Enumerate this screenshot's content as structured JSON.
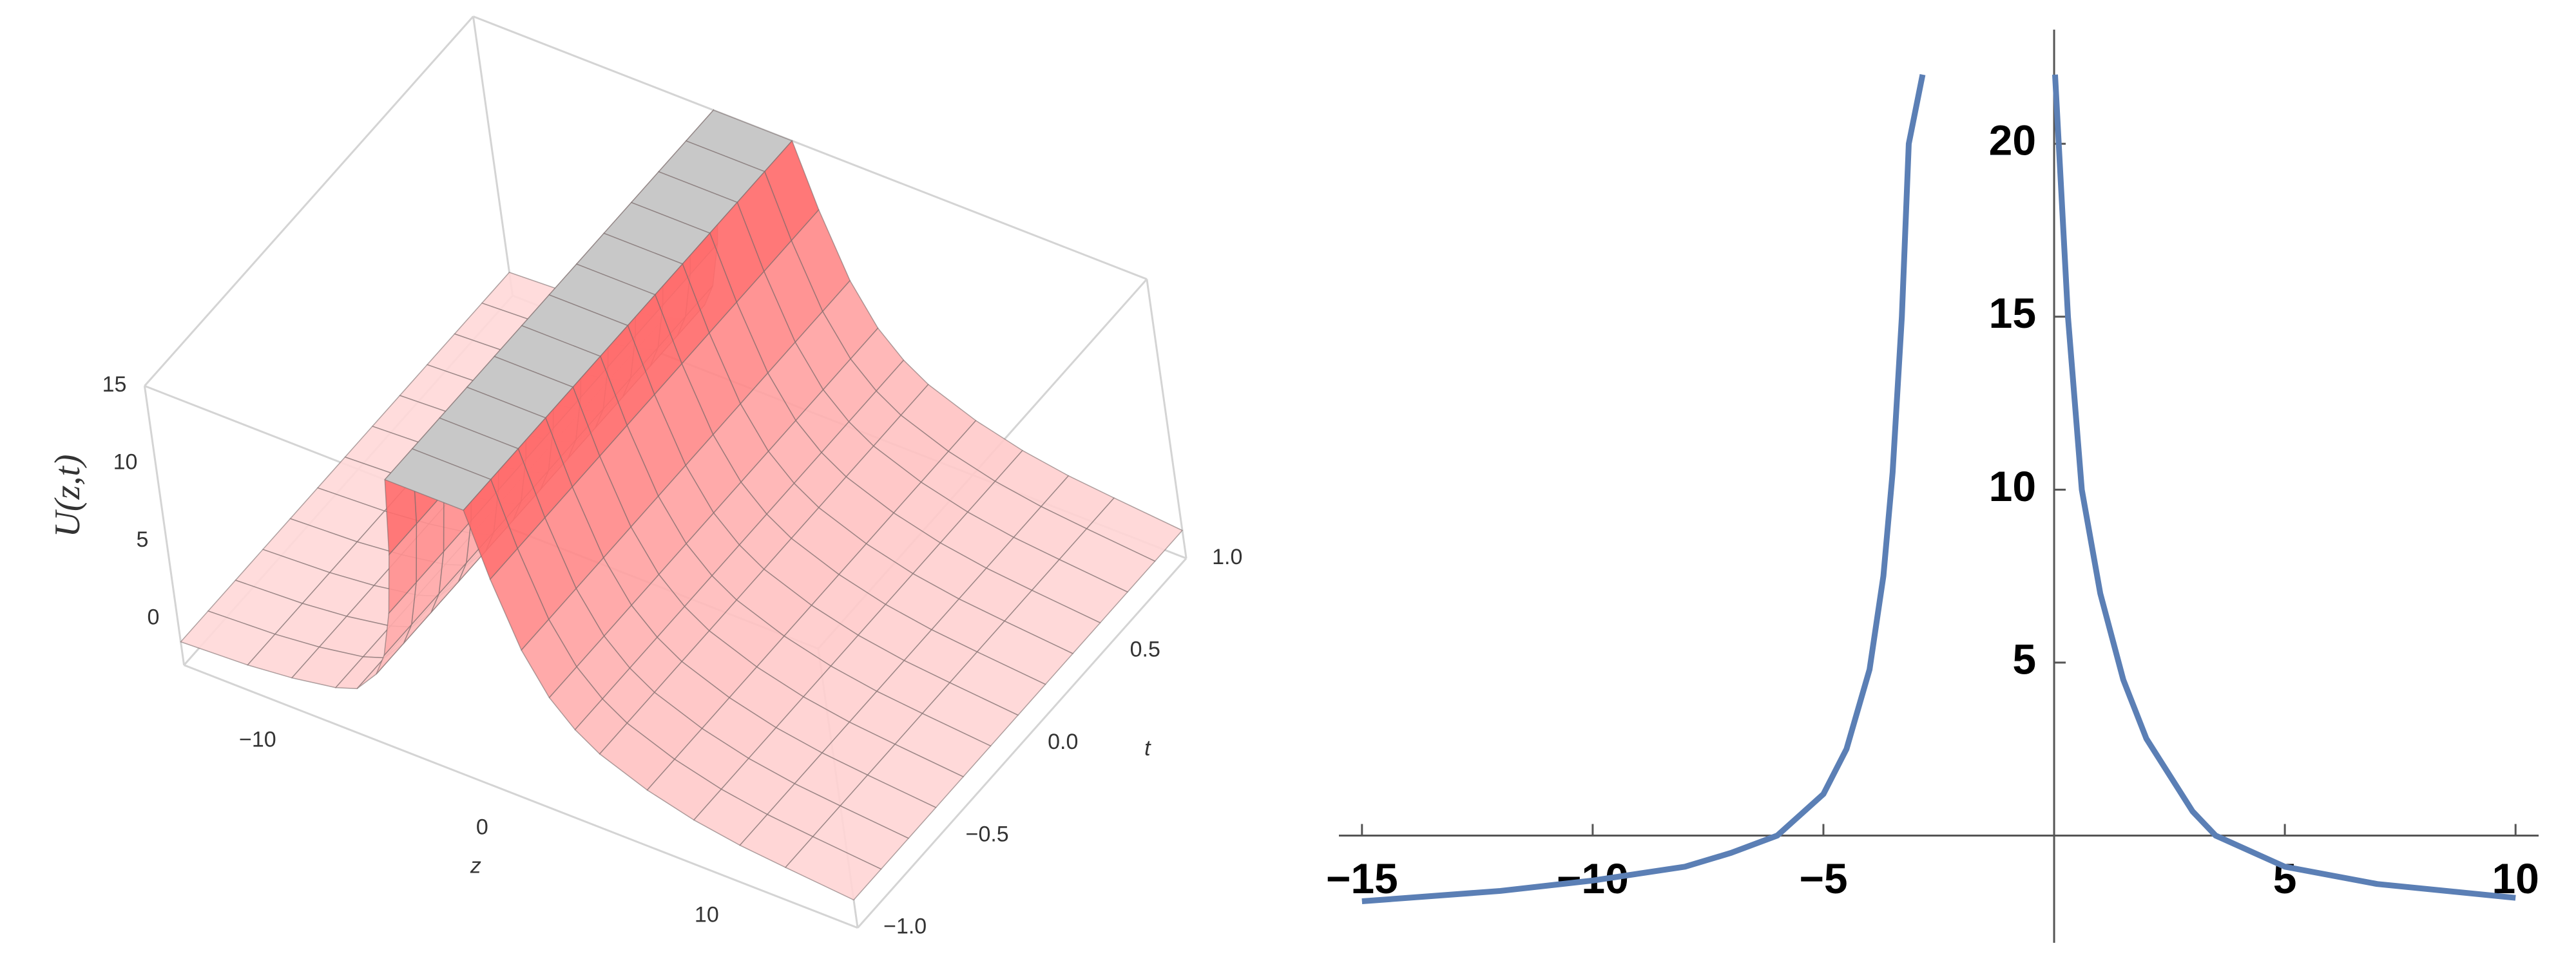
{
  "chart_data": [
    {
      "type": "surface3d",
      "xlabel": "z",
      "ylabel": "t",
      "zlabel": "U(z,t)",
      "x": [
        -15,
        -12,
        -10,
        -8,
        -7,
        -6,
        -5.5,
        -5,
        -4.6,
        -4.3,
        -2.5,
        -0.8,
        0,
        1,
        2,
        3,
        4,
        6,
        8,
        10,
        12,
        15
      ],
      "values": [
        -1.5,
        -1.3,
        -1.0,
        -0.5,
        0,
        1.5,
        3,
        6,
        10,
        15,
        null,
        15,
        11,
        7,
        4.5,
        3,
        2,
        0.8,
        0,
        -0.5,
        -0.8,
        -1.2
      ],
      "color": "#ff5a5a",
      "cap_color": "#c8c8c8",
      "xlim": [
        -15,
        15
      ],
      "ylim": [
        -1,
        1
      ],
      "zlim": [
        -3,
        15
      ],
      "xticks": [
        {
          "value": -10,
          "label": "−10"
        },
        0,
        10
      ],
      "yticks": [
        {
          "value": -1,
          "label": "−1.0"
        },
        {
          "value": -0.5,
          "label": "−0.5"
        },
        {
          "value": 0,
          "label": "0.0"
        },
        {
          "value": 0.5,
          "label": "0.5"
        },
        {
          "value": 1,
          "label": "1.0"
        }
      ],
      "zticks": [
        0,
        5,
        10,
        15
      ]
    },
    {
      "type": "line",
      "x": [
        -15,
        -12,
        -10,
        -8,
        -7,
        -6,
        -5,
        -4.5,
        -4,
        -3.7,
        -3.5,
        -3.3,
        -3.15,
        -2.85,
        -1.5,
        0.02,
        0.1,
        0.3,
        0.6,
        1,
        1.5,
        2,
        3,
        3.5,
        5,
        7,
        10
      ],
      "values": [
        -1.9,
        -1.6,
        -1.3,
        -0.9,
        -0.5,
        0,
        1.2,
        2.5,
        4.8,
        7.5,
        10.5,
        15,
        20,
        22,
        null,
        22,
        20,
        15,
        10,
        7,
        4.5,
        2.8,
        0.7,
        0,
        -0.9,
        -1.4,
        -1.8
      ],
      "color": "#5b7fb5",
      "xlim": [
        -15.5,
        10.5
      ],
      "ylim": [
        -3.1,
        23.3
      ],
      "xticks": [
        {
          "value": -15,
          "label": "−15"
        },
        {
          "value": -10,
          "label": "−10"
        },
        {
          "value": -5,
          "label": "−5"
        },
        5,
        10
      ],
      "yticks": [
        5,
        10,
        15,
        20
      ]
    }
  ]
}
